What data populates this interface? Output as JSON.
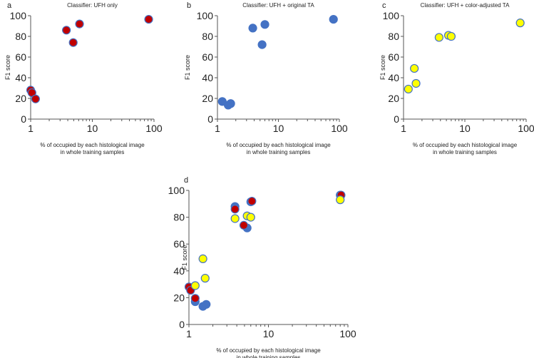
{
  "chart_data": [
    {
      "type": "scatter",
      "panel": "a",
      "title": "Classifier: UFH only",
      "xlabel": [
        "% of occupied by each histological image",
        "in whole training samples"
      ],
      "ylabel": "F1 score",
      "xscale": "log",
      "xlim": [
        1,
        100
      ],
      "ylim": [
        0,
        100
      ],
      "xticks": [
        "1",
        "10",
        "100"
      ],
      "yticks": [
        "0",
        "20",
        "40",
        "60",
        "80",
        "100"
      ],
      "series": [
        {
          "name": "UFH only",
          "color": "#c00000",
          "x": [
            1.0,
            1.05,
            1.2,
            3.8,
            4.9,
            6.2,
            82
          ],
          "y": [
            28,
            25.5,
            19.5,
            86,
            74,
            92,
            96.5
          ]
        }
      ]
    },
    {
      "type": "scatter",
      "panel": "b",
      "title": "Classifier: UFH + original TA",
      "xlabel": [
        "% of occupied by each histological image",
        "in whole training samples"
      ],
      "ylabel": "F1 score",
      "xscale": "log",
      "xlim": [
        1,
        100
      ],
      "ylim": [
        0,
        100
      ],
      "xticks": [
        "1",
        "10",
        "100"
      ],
      "yticks": [
        "0",
        "20",
        "40",
        "60",
        "80",
        "100"
      ],
      "series": [
        {
          "name": "UFH + original TA",
          "color": "#4472c4",
          "x": [
            1.2,
            1.5,
            1.65,
            3.8,
            5.4,
            6.0,
            80
          ],
          "y": [
            17,
            13.5,
            15,
            88,
            72,
            91.5,
            96.5
          ]
        }
      ]
    },
    {
      "type": "scatter",
      "panel": "c",
      "title": "Classifier: UFH + color-adjusted TA",
      "xlabel": [
        "% of occupied by each histological image",
        "in whole training samples"
      ],
      "ylabel": "F1 score",
      "xscale": "log",
      "xlim": [
        1,
        100
      ],
      "ylim": [
        0,
        100
      ],
      "xticks": [
        "1",
        "10",
        "100"
      ],
      "yticks": [
        "0",
        "20",
        "40",
        "60",
        "80",
        "100"
      ],
      "series": [
        {
          "name": "UFH + color-adjusted TA",
          "color": "#ffff00",
          "x": [
            1.2,
            1.5,
            1.6,
            3.8,
            5.4,
            6.0,
            80
          ],
          "y": [
            29,
            49,
            34.5,
            79,
            81,
            80,
            93
          ]
        }
      ]
    },
    {
      "type": "scatter",
      "panel": "d",
      "title": "",
      "xlabel": [
        "% of occupied by each histological image",
        "in whole training samples"
      ],
      "ylabel": "F1 score",
      "xscale": "log",
      "xlim": [
        1,
        100
      ],
      "ylim": [
        0,
        100
      ],
      "xticks": [
        "1",
        "10",
        "100"
      ],
      "yticks": [
        "0",
        "20",
        "40",
        "60",
        "80",
        "100"
      ],
      "series": [
        {
          "name": "UFH + original TA",
          "color": "#4472c4",
          "x": [
            1.2,
            1.5,
            1.65,
            3.8,
            5.4,
            6.0,
            80
          ],
          "y": [
            17,
            13.5,
            15,
            88,
            72,
            91.5,
            96.5
          ]
        },
        {
          "name": "UFH only",
          "color": "#c00000",
          "x": [
            1.0,
            1.05,
            1.2,
            3.8,
            4.9,
            6.2,
            82
          ],
          "y": [
            28,
            25.5,
            19.5,
            86,
            74,
            92,
            96.5
          ]
        },
        {
          "name": "UFH + color-adjusted TA",
          "color": "#ffff00",
          "x": [
            1.2,
            1.5,
            1.6,
            3.8,
            5.4,
            6.0,
            80
          ],
          "y": [
            29,
            49,
            34.5,
            79,
            81,
            80,
            93
          ]
        }
      ]
    }
  ]
}
